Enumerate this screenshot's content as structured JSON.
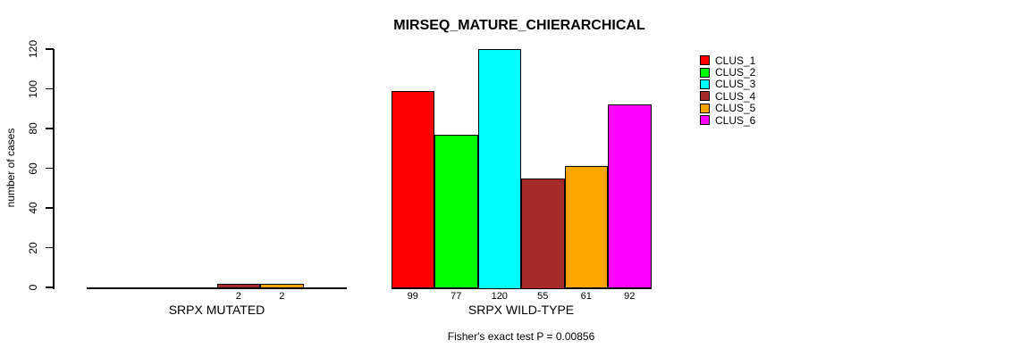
{
  "chart_data": {
    "type": "bar",
    "title": "MIRSEQ_MATURE_CHIERARCHICAL",
    "xlabel": "",
    "ylabel": "number of cases",
    "ylim": [
      0,
      120
    ],
    "yticks": [
      0,
      20,
      40,
      60,
      80,
      100,
      120
    ],
    "grid": false,
    "legend_position": "right",
    "categories": [
      "SRPX MUTATED",
      "SRPX WILD-TYPE"
    ],
    "series": [
      {
        "name": "CLUS_1",
        "color": "#ff0000",
        "values": [
          0,
          99
        ]
      },
      {
        "name": "CLUS_2",
        "color": "#00ff00",
        "values": [
          0,
          77
        ]
      },
      {
        "name": "CLUS_3",
        "color": "#00ffff",
        "values": [
          0,
          120
        ]
      },
      {
        "name": "CLUS_4",
        "color": "#a52a2a",
        "values": [
          2,
          55
        ]
      },
      {
        "name": "CLUS_5",
        "color": "#ffa500",
        "values": [
          2,
          61
        ]
      },
      {
        "name": "CLUS_6",
        "color": "#ff00ff",
        "values": [
          0,
          92
        ]
      }
    ],
    "bar_value_label_rule": "value printed under each bar when value > 0",
    "annotation": "Fisher's exact test P = 0.00856"
  }
}
